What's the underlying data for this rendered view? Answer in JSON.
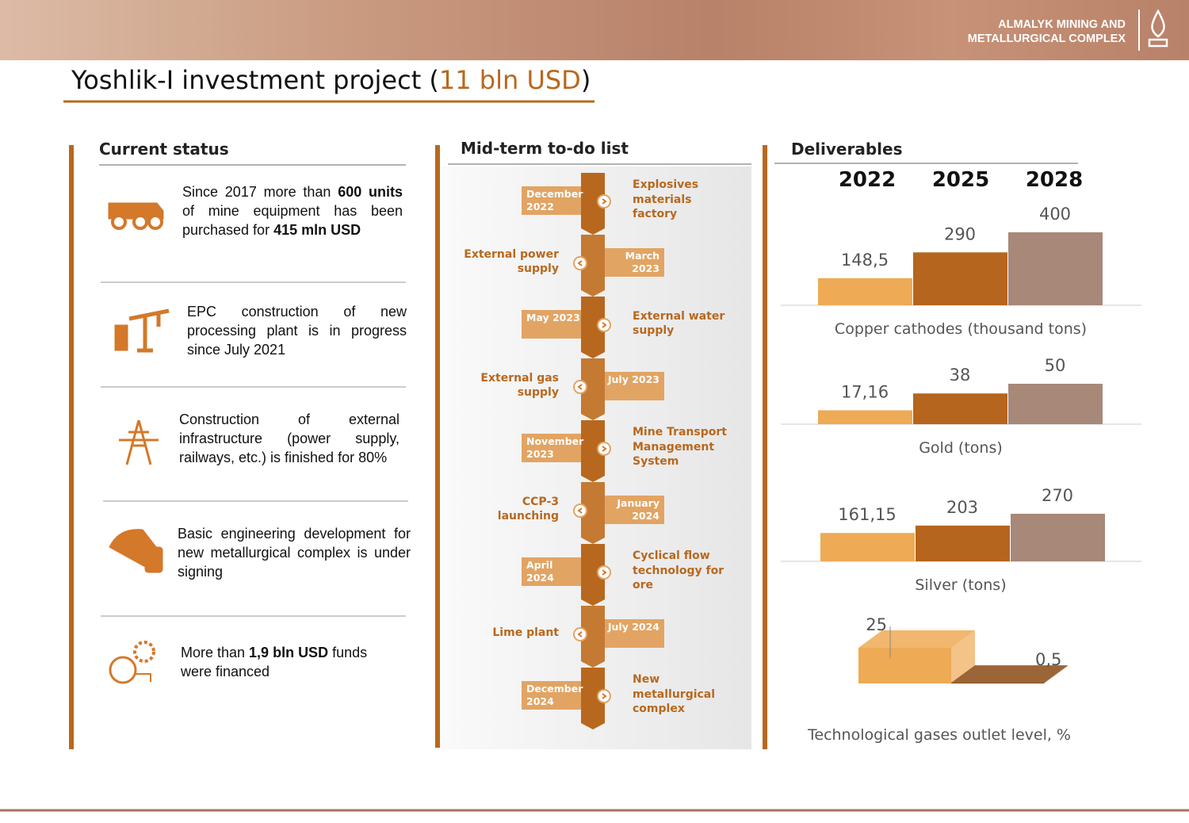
{
  "header": {
    "company_line1": "ALMALYK MINING AND",
    "company_line2": "METALLURGICAL COMPLEX",
    "title": [
      "Yoshlik-I investment project (",
      "11 bln USD",
      ")"
    ]
  },
  "status": {
    "heading": "Current status",
    "items": [
      {
        "parts": [
          {
            "text": "Since 2017 more than ",
            "bold": false
          },
          {
            "text": "600 units",
            "bold": true
          },
          {
            "text": " of mine equipment has been purchased for ",
            "bold": false
          },
          {
            "text": "415 mln USD",
            "bold": true
          }
        ]
      },
      {
        "parts": [
          {
            "text": "EPC construction of new processing plant is in progress since July 2021",
            "bold": false
          }
        ]
      },
      {
        "parts": [
          {
            "text": "Construction of external infrastructure (power supply, railways, etc.) is finished for 80%",
            "bold": false
          }
        ]
      },
      {
        "parts": [
          {
            "text": "Basic engineering development for new metallurgical complex is under signing",
            "bold": false
          }
        ]
      },
      {
        "parts": [
          {
            "text": "More than ",
            "bold": false
          },
          {
            "text": "1,9 bln USD",
            "bold": true
          },
          {
            "text": " funds were financed",
            "bold": false
          }
        ]
      }
    ]
  },
  "todo": {
    "heading": "Mid-term to-do list",
    "items": [
      {
        "date": "December 2022",
        "task": "Explosives materials factory"
      },
      {
        "date": "March 2023",
        "task": "External power supply"
      },
      {
        "date": "May 2023",
        "task": "External water supply"
      },
      {
        "date": "July 2023",
        "task": "External gas supply"
      },
      {
        "date": "November 2023",
        "task": "Mine Transport Management System"
      },
      {
        "date": "January 2024",
        "task": "CCP-3 launching"
      },
      {
        "date": "April 2024",
        "task": "Cyclical flow technology for ore"
      },
      {
        "date": "July 2024",
        "task": "Lime plant"
      },
      {
        "date": "December 2024",
        "task": "New metallurgical complex"
      }
    ]
  },
  "deliverables": {
    "heading": "Deliverables"
  },
  "chart_data": [
    {
      "type": "bar",
      "title": "Copper cathodes (thousand tons)",
      "categories": [
        "2022",
        "2025",
        "2028"
      ],
      "values": [
        148.5,
        290,
        400
      ],
      "value_labels": [
        "148,5",
        "290",
        "400"
      ],
      "colors": [
        "#eeaa55",
        "#b5651d",
        "#a88878"
      ]
    },
    {
      "type": "bar",
      "title": "Gold (tons)",
      "values": [
        17.16,
        38,
        50
      ],
      "value_labels": [
        "17,16",
        "38",
        "50"
      ],
      "colors": [
        "#eeaa55",
        "#b5651d",
        "#a88878"
      ]
    },
    {
      "type": "bar",
      "title": "Silver (tons)",
      "values": [
        161.15,
        203,
        270
      ],
      "value_labels": [
        "161,15",
        "203",
        "270"
      ],
      "colors": [
        "#eeaa55",
        "#b5651d",
        "#a88878"
      ]
    },
    {
      "type": "bar3d",
      "title": "Technological gases outlet level, %",
      "values": [
        25,
        0.5
      ],
      "value_labels": [
        "25",
        "0,5"
      ],
      "colors": [
        "#eeaa55",
        "#8a4a14"
      ]
    }
  ]
}
